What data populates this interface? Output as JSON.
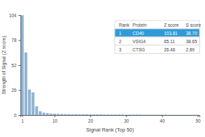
{
  "chart_data": {
    "type": "bar",
    "x_label": "Signal Rank (Top 50)",
    "y_label": "Strength of Signal (Z score)",
    "x": [
      1,
      2,
      3,
      4,
      5,
      6,
      7,
      8,
      9,
      10,
      11,
      12,
      13,
      14,
      15,
      16,
      17,
      18,
      19,
      20,
      21,
      22,
      23,
      24,
      25,
      26,
      27,
      28,
      29,
      30,
      31,
      32,
      33,
      34,
      35,
      36,
      37,
      38,
      39,
      40,
      41,
      42,
      43,
      44,
      45,
      46,
      47,
      48,
      49,
      50
    ],
    "values": [
      103.81,
      65.11,
      26.46,
      23.57,
      9,
      4,
      2.5,
      2,
      1.6,
      1.4,
      1.2,
      1.1,
      1,
      1,
      0.9,
      0.9,
      0.8,
      0.8,
      0.8,
      0.7,
      0.7,
      0.7,
      0.7,
      0.6,
      0.6,
      0.6,
      0.6,
      0.6,
      0.5,
      0.5,
      0.5,
      0.5,
      0.5,
      0.5,
      0.4,
      0.4,
      0.4,
      0.4,
      0.4,
      0.4,
      0.4,
      0.3,
      0.3,
      0.3,
      0.3,
      0.3,
      0.3,
      0.3,
      0.3,
      0.3
    ],
    "color": "#8fb4d6",
    "xlim": [
      0.5,
      50.5
    ],
    "xticks": [
      1,
      10,
      20,
      30,
      40,
      50
    ],
    "ylim": [
      0,
      104
    ],
    "yticks": [
      0,
      26,
      52,
      78,
      104
    ],
    "grid": false,
    "table": {
      "columns": [
        "Rank",
        "Protein",
        "Z score",
        "S score"
      ],
      "rows": [
        [
          "1",
          "CD40",
          "103.81",
          "38.70"
        ],
        [
          "2",
          "VSIG4",
          "65.11",
          "38.65"
        ],
        [
          "3",
          "CTSG",
          "26.46",
          "2.89"
        ]
      ]
    }
  }
}
